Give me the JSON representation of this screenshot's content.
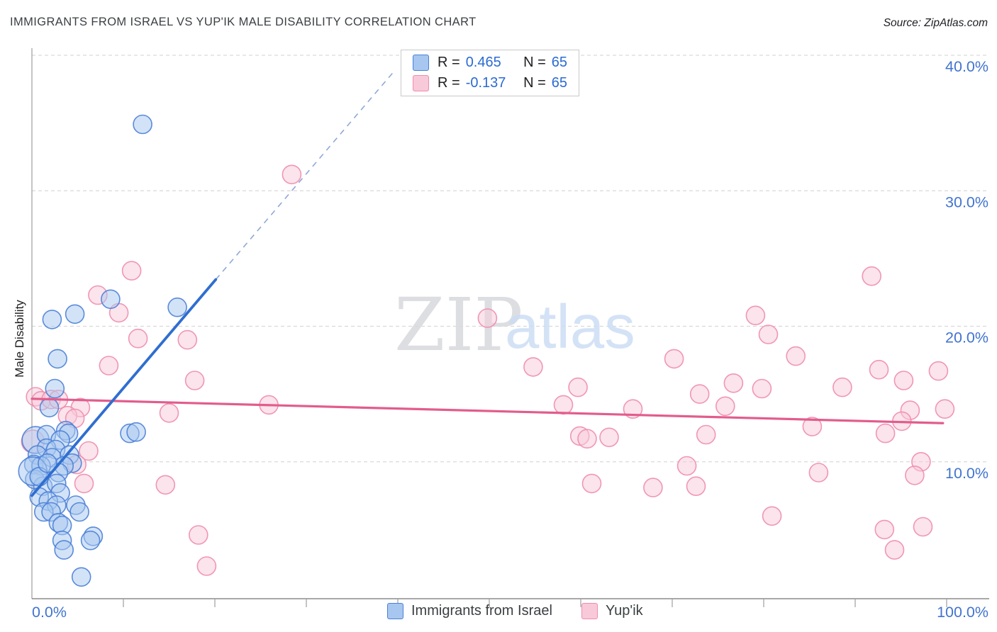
{
  "title": "IMMIGRANTS FROM ISRAEL VS YUP'IK MALE DISABILITY CORRELATION CHART",
  "source": "Source: ZipAtlas.com",
  "y_axis_title": "Male Disability",
  "watermark": {
    "zip": "ZIP",
    "atlas": "atlas"
  },
  "legend_box": {
    "rows": [
      {
        "series": "Immigrants from Israel",
        "r_label": "R =",
        "r": "0.465",
        "n_label": "N =",
        "n": "65"
      },
      {
        "series": "Yup'ik",
        "r_label": "R =",
        "r": "-0.137",
        "n_label": "N =",
        "n": "65"
      }
    ]
  },
  "bottom_legend": [
    {
      "label": "Immigrants from Israel"
    },
    {
      "label": "Yup'ik"
    }
  ],
  "colors": {
    "blue_fill": "#a7c7f0",
    "blue_stroke": "#4a80d6",
    "pink_fill": "#f8c9d9",
    "pink_stroke": "#f08cad",
    "blue_line": "#2f6ed0",
    "blue_dash": "#8fa8d9",
    "pink_line": "#e25c8c",
    "grid": "#d9d9d9",
    "axis": "#9e9e9e",
    "tick_label": "#4274cf",
    "watermark_zip": "#d5d7da",
    "watermark_atlas": "#cadcf5"
  },
  "chart_data": {
    "type": "scatter",
    "xlabel": "Immigrants from Israel (%)",
    "ylabel": "Male Disability",
    "xlim": [
      0,
      100
    ],
    "ylim": [
      0,
      41.8
    ],
    "grid_y_values": [
      10,
      20,
      30,
      40
    ],
    "y_tick_labels": [
      {
        "value": 40,
        "label": "40.0%"
      },
      {
        "value": 30,
        "label": "30.0%"
      },
      {
        "value": 20,
        "label": "20.0%"
      },
      {
        "value": 10,
        "label": "10.0%"
      }
    ],
    "x_tick_labels": [
      {
        "value": 0,
        "label": "0.0%",
        "anchor": "start"
      },
      {
        "value": 100,
        "label": "100.0%",
        "anchor": "end"
      }
    ],
    "x_minor_ticks": [
      10,
      20,
      30,
      40,
      50,
      60,
      70,
      80,
      90,
      100
    ],
    "series": [
      {
        "name": "Immigrants from Israel",
        "R": 0.465,
        "N": 65,
        "points": [
          [
            12.1,
            34.9
          ],
          [
            8.6,
            22.0
          ],
          [
            15.9,
            21.4
          ],
          [
            4.7,
            20.9
          ],
          [
            2.2,
            20.5
          ],
          [
            2.8,
            17.6
          ],
          [
            2.5,
            15.4
          ],
          [
            1.9,
            14.0
          ],
          [
            0.4,
            11.6,
            19
          ],
          [
            1.6,
            12.0
          ],
          [
            3.7,
            12.3
          ],
          [
            4.0,
            12.1
          ],
          [
            10.7,
            12.1
          ],
          [
            11.4,
            12.2
          ],
          [
            3.1,
            11.6
          ],
          [
            1.6,
            11.0
          ],
          [
            2.6,
            10.9
          ],
          [
            0.6,
            10.5
          ],
          [
            2.2,
            10.3
          ],
          [
            4.1,
            10.5
          ],
          [
            4.4,
            9.9
          ],
          [
            0.2,
            9.8
          ],
          [
            1.0,
            9.7
          ],
          [
            3.5,
            9.7
          ],
          [
            2.9,
            9.2
          ],
          [
            0.3,
            8.7
          ],
          [
            1.2,
            8.2
          ],
          [
            2.7,
            8.4
          ],
          [
            0.1,
            9.3,
            20
          ],
          [
            0.8,
            8.9
          ],
          [
            1.7,
            9.9
          ],
          [
            3.1,
            7.7
          ],
          [
            0.8,
            7.4
          ],
          [
            1.8,
            7.1
          ],
          [
            2.7,
            6.8
          ],
          [
            1.3,
            6.3
          ],
          [
            2.1,
            6.3
          ],
          [
            4.8,
            6.8
          ],
          [
            5.2,
            6.3
          ],
          [
            2.9,
            5.5
          ],
          [
            3.3,
            5.3
          ],
          [
            6.7,
            4.5
          ],
          [
            6.4,
            4.2
          ],
          [
            3.3,
            4.2
          ],
          [
            3.5,
            3.5
          ],
          [
            5.4,
            1.5
          ]
        ],
        "trend_solid": {
          "x1": 0,
          "y1": 7.5,
          "x2": 20.1,
          "y2": 23.45
        },
        "trend_dashed": {
          "x1": 20.1,
          "y1": 23.45,
          "x2": 39.7,
          "y2": 38.9
        }
      },
      {
        "name": "Yup'ik",
        "R": -0.137,
        "N": 65,
        "points": [
          [
            28.4,
            31.2
          ],
          [
            91.8,
            23.7
          ],
          [
            10.9,
            24.1
          ],
          [
            7.2,
            22.3
          ],
          [
            9.5,
            21.0
          ],
          [
            11.6,
            19.1
          ],
          [
            17.0,
            19.0
          ],
          [
            49.8,
            20.6
          ],
          [
            8.4,
            17.1
          ],
          [
            17.8,
            16.0
          ],
          [
            0.4,
            14.8
          ],
          [
            1.0,
            14.5
          ],
          [
            2.1,
            14.6
          ],
          [
            2.9,
            14.6
          ],
          [
            5.3,
            14.0
          ],
          [
            3.9,
            13.4
          ],
          [
            4.7,
            13.2
          ],
          [
            0.1,
            11.5,
            16
          ],
          [
            6.2,
            10.8
          ],
          [
            4.9,
            9.8
          ],
          [
            5.7,
            8.4
          ],
          [
            15.0,
            13.6
          ],
          [
            14.6,
            8.3
          ],
          [
            25.9,
            14.2
          ],
          [
            18.2,
            4.6
          ],
          [
            19.1,
            2.3
          ],
          [
            54.8,
            17.0
          ],
          [
            70.2,
            17.6
          ],
          [
            59.7,
            15.5
          ],
          [
            58.1,
            14.2
          ],
          [
            65.7,
            13.9
          ],
          [
            73.0,
            15.0
          ],
          [
            76.7,
            15.8
          ],
          [
            79.8,
            15.4
          ],
          [
            75.8,
            14.1
          ],
          [
            59.9,
            11.9
          ],
          [
            60.7,
            11.7
          ],
          [
            63.1,
            11.8
          ],
          [
            73.7,
            12.0
          ],
          [
            71.6,
            9.7
          ],
          [
            61.2,
            8.4
          ],
          [
            67.9,
            8.1
          ],
          [
            72.6,
            8.2
          ],
          [
            79.1,
            20.8
          ],
          [
            80.5,
            19.4
          ],
          [
            83.5,
            17.8
          ],
          [
            85.3,
            12.6
          ],
          [
            86.0,
            9.2
          ],
          [
            80.9,
            6.0
          ],
          [
            88.6,
            15.5
          ],
          [
            92.6,
            16.8
          ],
          [
            95.3,
            16.0
          ],
          [
            99.1,
            16.7
          ],
          [
            96.0,
            13.8
          ],
          [
            95.1,
            13.0
          ],
          [
            99.8,
            13.9
          ],
          [
            93.3,
            12.1
          ],
          [
            97.2,
            10.0
          ],
          [
            96.5,
            9.0
          ],
          [
            93.2,
            5.0
          ],
          [
            97.4,
            5.2
          ],
          [
            94.3,
            3.5
          ]
        ],
        "trend_solid": {
          "x1": 0,
          "y1": 14.65,
          "x2": 99.6,
          "y2": 12.85
        }
      }
    ]
  }
}
